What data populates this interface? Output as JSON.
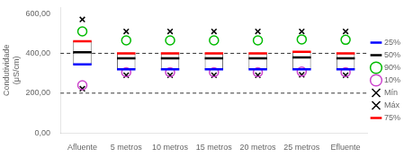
{
  "chart_data": {
    "type": "box",
    "categories": [
      "Afluente",
      "5 metros",
      "10 metros",
      "15 metros",
      "20 metros",
      "25 metros",
      "Efluente"
    ],
    "ylabel": "Condutividade\n(μS/cm)",
    "ylim": [
      0,
      630
    ],
    "yticks": [
      {
        "value": 0,
        "label": "0,00"
      },
      {
        "value": 200,
        "label": "200,00"
      },
      {
        "value": 400,
        "label": "400,00"
      },
      {
        "value": 600,
        "label": "600,00"
      }
    ],
    "color": "white",
    "grid": false,
    "legend": "right",
    "hlines": [
      200,
      400
    ],
    "series": [
      {
        "name": "25%",
        "color": "blue",
        "marker": "line",
        "values": [
          345,
          320,
          320,
          320,
          320,
          320,
          320
        ]
      },
      {
        "name": "50%",
        "color": "black",
        "marker": "line",
        "values": [
          405,
          375,
          375,
          375,
          375,
          380,
          375
        ]
      },
      {
        "name": "90%",
        "color": "#00bb00",
        "marker": "circle",
        "values": [
          510,
          465,
          465,
          465,
          465,
          470,
          468
        ]
      },
      {
        "name": "10%",
        "color": "#cc44cc",
        "marker": "circle",
        "values": [
          240,
          305,
          305,
          305,
          305,
          308,
          305
        ]
      },
      {
        "name": "Mín",
        "color": "black",
        "marker": "x",
        "values": [
          222,
          290,
          290,
          290,
          290,
          292,
          290
        ]
      },
      {
        "name": "Máx",
        "color": "black",
        "marker": "x",
        "values": [
          570,
          510,
          510,
          510,
          510,
          510,
          510
        ]
      },
      {
        "name": "75%",
        "color": "red",
        "marker": "line",
        "values": [
          460,
          400,
          400,
          400,
          400,
          408,
          400
        ]
      }
    ]
  }
}
